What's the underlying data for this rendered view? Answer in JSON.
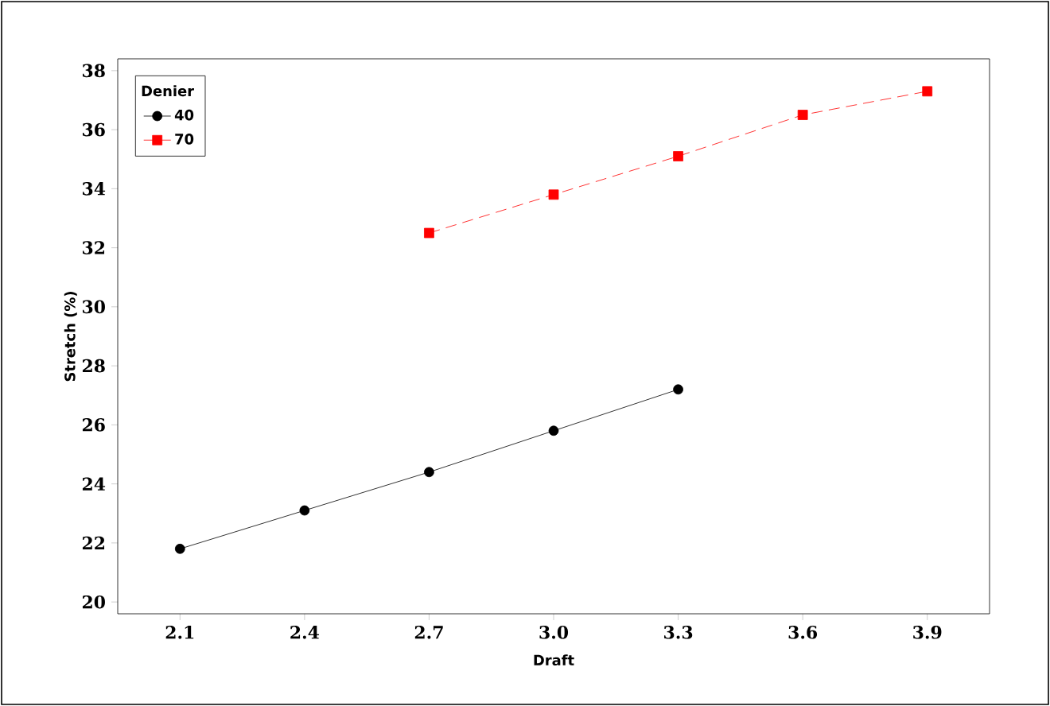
{
  "chart_data": {
    "type": "line",
    "xlabel": "Draft",
    "ylabel": "Stretch (%)",
    "legend_title": "Denier",
    "legend": "top left",
    "grid": false,
    "xlim": [
      1.95,
      4.05
    ],
    "ylim": [
      19.6,
      38.4
    ],
    "xticks": [
      2.1,
      2.4,
      2.7,
      {
        "value": 3,
        "label": "3.0"
      },
      3.3,
      3.6,
      3.9
    ],
    "yticks": [
      20,
      22,
      24,
      26,
      28,
      30,
      32,
      34,
      36,
      38
    ],
    "series": [
      {
        "name": "40",
        "color": "#000000",
        "marker": "circle",
        "line_style": "solid",
        "x": [
          2.1,
          2.4,
          2.7,
          3.0,
          3.3
        ],
        "values": [
          21.8,
          23.1,
          24.4,
          25.8,
          27.2
        ]
      },
      {
        "name": "70",
        "color": "#ff0000",
        "marker": "square",
        "line_style": "dashed",
        "x": [
          2.7,
          3.0,
          3.3,
          3.6,
          3.9
        ],
        "values": [
          32.5,
          33.8,
          35.1,
          36.5,
          37.3
        ]
      }
    ]
  }
}
